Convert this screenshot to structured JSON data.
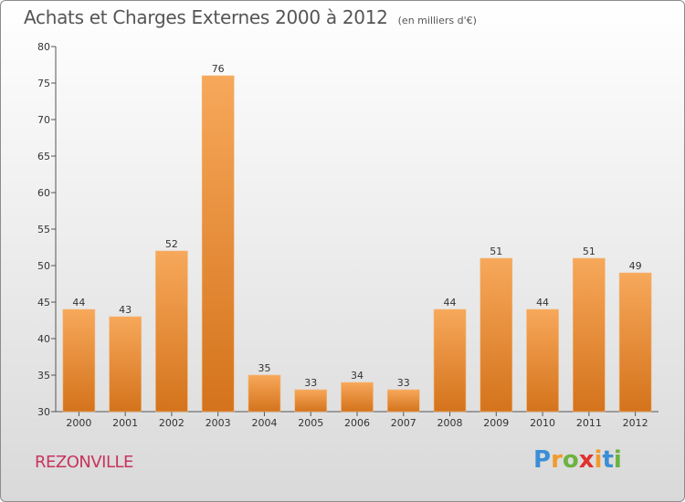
{
  "header": {
    "title": "Achats et Charges Externes 2000 à 2012",
    "subtitle": "(en milliers d'€)"
  },
  "footer": {
    "commune": "REZONVILLE",
    "logo": {
      "text": "Proxiti",
      "letter_colors": [
        "#3a8fd6",
        "#f29a2e",
        "#6cb33f",
        "#e0312f",
        "#f29a2e",
        "#3a8fd6",
        "#6cb33f"
      ]
    }
  },
  "colors": {
    "bar_light": "#f7a85a",
    "bar_dark": "#d4731c",
    "axis": "#555555",
    "grid": "#bbbbbb"
  },
  "chart_data": {
    "type": "bar",
    "title": "Achats et Charges Externes 2000 à 2012",
    "subtitle": "(en milliers d'€)",
    "xlabel": "",
    "ylabel": "",
    "categories": [
      "2000",
      "2001",
      "2002",
      "2003",
      "2004",
      "2005",
      "2006",
      "2007",
      "2008",
      "2009",
      "2010",
      "2011",
      "2012"
    ],
    "values": [
      44,
      43,
      52,
      76,
      35,
      33,
      34,
      33,
      44,
      51,
      44,
      51,
      49
    ],
    "ylim": [
      30,
      80
    ],
    "yticks": [
      30,
      35,
      40,
      45,
      50,
      55,
      60,
      65,
      70,
      75,
      80
    ],
    "grid": false,
    "data_labels": true
  }
}
